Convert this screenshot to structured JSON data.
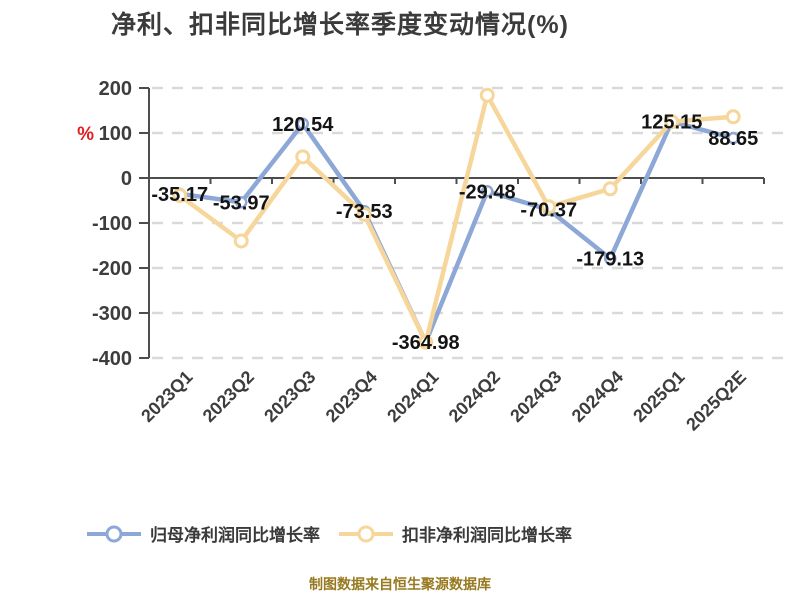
{
  "title": "净利、扣非同比增长率季度变动情况(%)",
  "footer": "制图数据来自恒生聚源数据库",
  "y_axis_unit": "%",
  "colors": {
    "title": "#3B3B3B",
    "axis": "#4D4D4D",
    "tick_label": "#3D3D3D",
    "unit_label": "#E02020",
    "gridline": "#D9D9D9",
    "data_label": "#141414",
    "footer": "#97791F",
    "series_blue": "#8DA7D6",
    "series_yellow": "#F6D69A"
  },
  "chart_data": {
    "type": "line",
    "title": "净利、扣非同比增长率季度变动情况(%)",
    "categories": [
      "2023Q1",
      "2023Q2",
      "2023Q3",
      "2023Q4",
      "2024Q1",
      "2024Q2",
      "2024Q3",
      "2024Q4",
      "2025Q1",
      "2025Q2E"
    ],
    "series": [
      {
        "name": "归母净利润同比增长率",
        "color": "#8DA7D6",
        "values": [
          -35.17,
          -53.97,
          120.54,
          -73.53,
          -364.98,
          -29.48,
          -70.37,
          -179.13,
          125.15,
          88.65
        ],
        "labels_shown": true
      },
      {
        "name": "扣非净利润同比增长率",
        "color": "#F6D69A",
        "values": [
          -39,
          -140,
          47,
          -81,
          -365,
          184,
          -64,
          -24,
          125,
          136
        ],
        "labels_shown": false,
        "values_estimated": true
      }
    ],
    "data_labels": [
      "-35.17",
      "-53.97",
      "120.54",
      "-73.53",
      "-364.98",
      "-29.48",
      "-70.37",
      "-179.13",
      "125.15",
      "88.65"
    ],
    "xlabel": "",
    "ylabel": "%",
    "ylim": [
      -400,
      200
    ],
    "y_ticks": [
      200,
      100,
      0,
      -100,
      -200,
      -300,
      -400
    ],
    "grid": "dashed-horizontal",
    "legend_position": "bottom",
    "x_label_rotation_deg": 45
  }
}
